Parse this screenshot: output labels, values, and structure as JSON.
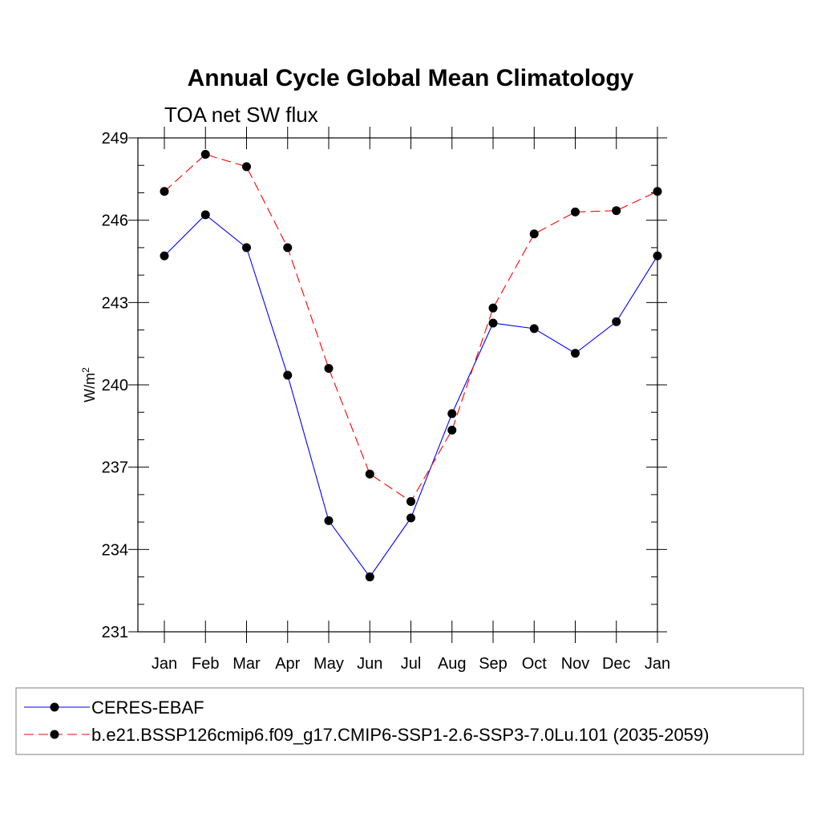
{
  "chart_data": {
    "type": "line",
    "title": "Annual Cycle Global Mean Climatology",
    "subtitle": "TOA net SW flux",
    "ylabel": "W/m",
    "ylabel_sup": "2",
    "xlabel": "",
    "categories": [
      "Jan",
      "Feb",
      "Mar",
      "Apr",
      "May",
      "Jun",
      "Jul",
      "Aug",
      "Sep",
      "Oct",
      "Nov",
      "Dec",
      "Jan"
    ],
    "ylim": [
      231,
      249
    ],
    "yticks": [
      231,
      234,
      237,
      240,
      243,
      246,
      249
    ],
    "grid": false,
    "legend_position": "bottom",
    "series": [
      {
        "name": "CERES-EBAF",
        "color": "#0000ff",
        "dash": "solid",
        "marker": "circle",
        "values": [
          244.7,
          246.2,
          245.0,
          240.35,
          235.05,
          233.0,
          235.15,
          238.95,
          242.25,
          242.05,
          241.15,
          242.3,
          244.7
        ]
      },
      {
        "name": "b.e21.BSSP126cmip6.f09_g17.CMIP6-SSP1-2.6-SSP3-7.0Lu.101 (2035-2059)",
        "color": "#ff0000",
        "dash": "dashed",
        "marker": "circle",
        "values": [
          247.05,
          248.4,
          247.95,
          245.0,
          240.6,
          236.75,
          235.75,
          238.35,
          242.8,
          245.5,
          246.3,
          246.35,
          247.05
        ]
      }
    ]
  }
}
